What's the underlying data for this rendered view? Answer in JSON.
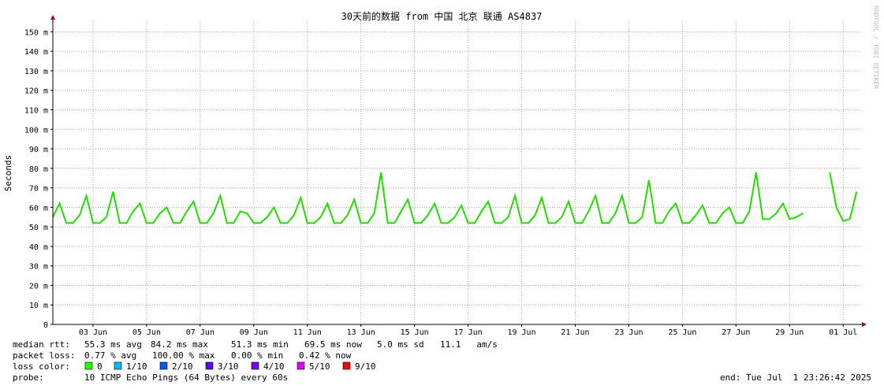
{
  "chart_data": {
    "type": "line",
    "title": "30天前的数据 from 中国 北京 联通 AS4837",
    "y_label": "Seconds",
    "side_note": "RRDTOOL / TOBI OETIKER",
    "xlim": [
      1.5,
      31.7
    ],
    "xticks": [
      {
        "value": 3,
        "label": "03 Jun"
      },
      {
        "value": 5,
        "label": "05 Jun"
      },
      {
        "value": 7,
        "label": "07 Jun"
      },
      {
        "value": 9,
        "label": "09 Jun"
      },
      {
        "value": 11,
        "label": "11 Jun"
      },
      {
        "value": 13,
        "label": "13 Jun"
      },
      {
        "value": 15,
        "label": "15 Jun"
      },
      {
        "value": 17,
        "label": "17 Jun"
      },
      {
        "value": 19,
        "label": "19 Jun"
      },
      {
        "value": 21,
        "label": "21 Jun"
      },
      {
        "value": 23,
        "label": "23 Jun"
      },
      {
        "value": 25,
        "label": "25 Jun"
      },
      {
        "value": 27,
        "label": "27 Jun"
      },
      {
        "value": 29,
        "label": "29 Jun"
      },
      {
        "value": 31,
        "label": "01 Jul"
      }
    ],
    "ylim": [
      0,
      0.155
    ],
    "yticks": [
      0,
      {
        "value": 0.01,
        "label": "10 m"
      },
      {
        "value": 0.02,
        "label": "20 m"
      },
      {
        "value": 0.03,
        "label": "30 m"
      },
      {
        "value": 0.04,
        "label": "40 m"
      },
      {
        "value": 0.05,
        "label": "50 m"
      },
      {
        "value": 0.06,
        "label": "60 m"
      },
      {
        "value": 0.07,
        "label": "70 m"
      },
      {
        "value": 0.08,
        "label": "80 m"
      },
      {
        "value": 0.09,
        "label": "90 m"
      },
      {
        "value": 0.1,
        "label": "100 m"
      },
      {
        "value": 0.11,
        "label": "110 m"
      },
      {
        "value": 0.12,
        "label": "120 m"
      },
      {
        "value": 0.13,
        "label": "130 m"
      },
      {
        "value": 0.14,
        "label": "140 m"
      },
      {
        "value": 0.15,
        "label": "150 m"
      }
    ],
    "grid": true,
    "color": "#22dd00",
    "x": [
      1.5,
      1.75,
      2,
      2.25,
      2.5,
      2.75,
      3,
      3.25,
      3.5,
      3.75,
      4,
      4.25,
      4.5,
      4.75,
      5,
      5.25,
      5.5,
      5.75,
      6,
      6.25,
      6.5,
      6.75,
      7,
      7.25,
      7.5,
      7.75,
      8,
      8.25,
      8.5,
      8.75,
      9,
      9.25,
      9.5,
      9.75,
      10,
      10.25,
      10.5,
      10.75,
      11,
      11.25,
      11.5,
      11.75,
      12,
      12.25,
      12.5,
      12.75,
      13,
      13.25,
      13.5,
      13.75,
      14,
      14.25,
      14.5,
      14.75,
      15,
      15.25,
      15.5,
      15.75,
      16,
      16.25,
      16.5,
      16.75,
      17,
      17.25,
      17.5,
      17.75,
      18,
      18.25,
      18.5,
      18.75,
      19,
      19.25,
      19.5,
      19.75,
      20,
      20.25,
      20.5,
      20.75,
      21,
      21.25,
      21.5,
      21.75,
      22,
      22.25,
      22.5,
      22.75,
      23,
      23.25,
      23.5,
      23.75,
      24,
      24.25,
      24.5,
      24.75,
      25,
      25.25,
      25.5,
      25.75,
      26,
      26.25,
      26.5,
      26.75,
      27,
      27.25,
      27.5,
      27.75,
      28,
      28.25,
      28.5,
      28.75,
      29,
      29.25,
      29.5,
      29.75,
      30,
      30.25,
      30.5,
      30.75,
      31,
      31.25,
      31.5
    ],
    "values": [
      0.055,
      0.062,
      0.052,
      0.052,
      0.056,
      0.066,
      0.052,
      0.052,
      0.055,
      0.068,
      0.052,
      0.052,
      0.058,
      0.062,
      0.052,
      0.052,
      0.057,
      0.06,
      0.052,
      0.052,
      0.058,
      0.063,
      0.052,
      0.052,
      0.057,
      0.066,
      0.052,
      0.052,
      0.058,
      0.057,
      0.052,
      0.052,
      0.055,
      0.06,
      0.052,
      0.052,
      0.056,
      0.065,
      0.052,
      0.052,
      0.055,
      0.062,
      0.052,
      0.052,
      0.056,
      0.064,
      0.052,
      0.052,
      0.057,
      0.078,
      0.052,
      0.052,
      0.058,
      0.064,
      0.052,
      0.052,
      0.056,
      0.062,
      0.052,
      0.052,
      0.055,
      0.061,
      0.052,
      0.052,
      0.058,
      0.063,
      0.052,
      0.052,
      0.055,
      0.066,
      0.052,
      0.052,
      0.056,
      0.065,
      0.052,
      0.052,
      0.055,
      0.063,
      0.052,
      0.052,
      0.058,
      0.066,
      0.052,
      0.052,
      0.057,
      0.066,
      0.052,
      0.052,
      0.055,
      0.074,
      0.052,
      0.052,
      0.058,
      0.062,
      0.052,
      0.052,
      0.056,
      0.061,
      0.052,
      0.052,
      0.057,
      0.06,
      0.052,
      0.052,
      0.058,
      0.078,
      0.054,
      0.054,
      0.057,
      0.062,
      0.054,
      0.055,
      0.057,
      null,
      null,
      null,
      0.078,
      0.06,
      0.053,
      0.054,
      0.068
    ],
    "footer": {
      "median_rtt": {
        "label": "median rtt:",
        "items": [
          "55.3 ms avg",
          "84.2 ms max",
          "51.3 ms min",
          "69.5 ms now",
          "5.0 ms sd",
          "11.1   am/s"
        ]
      },
      "packet_loss": {
        "label": "packet loss:",
        "items": [
          "0.77 % avg",
          "100.00 % max",
          "0.00 % min",
          "0.42 % now"
        ]
      },
      "loss_color": {
        "label": "loss color:",
        "items": [
          {
            "label": "0",
            "color": "#26ff00"
          },
          {
            "label": "1/10",
            "color": "#00b8ff"
          },
          {
            "label": "2/10",
            "color": "#0059ff"
          },
          {
            "label": "3/10",
            "color": "#5e00ff"
          },
          {
            "label": "4/10",
            "color": "#7e00ff"
          },
          {
            "label": "5/10",
            "color": "#dd00ff"
          },
          {
            "label": "9/10",
            "color": "#ff0000"
          }
        ]
      },
      "probe": {
        "label": "probe:",
        "text": "10 ICMP Echo Pings (64 Bytes) every 60s"
      },
      "end": "end: Tue Jul  1 23:26:42 2025"
    }
  }
}
